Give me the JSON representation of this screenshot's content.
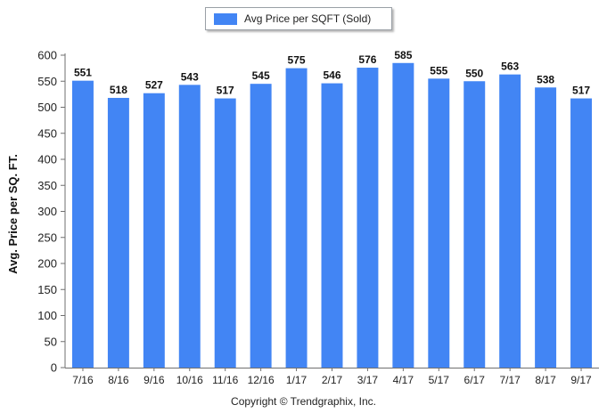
{
  "legend": {
    "label": "Avg Price per SQFT (Sold)",
    "color": "#4285f4"
  },
  "footer": {
    "copyright": "Copyright © Trendgraphix, Inc."
  },
  "chart_data": {
    "type": "bar",
    "categories": [
      "7/16",
      "8/16",
      "9/16",
      "10/16",
      "11/16",
      "12/16",
      "1/17",
      "2/17",
      "3/17",
      "4/17",
      "5/17",
      "6/17",
      "7/17",
      "8/17",
      "9/17"
    ],
    "series": [
      {
        "name": "Avg Price per SQFT (Sold)",
        "values": [
          551,
          518,
          527,
          543,
          517,
          545,
          575,
          546,
          576,
          585,
          555,
          550,
          563,
          538,
          517
        ]
      }
    ],
    "ylabel": "Avg. Price per SQ. FT.",
    "xlabel": "",
    "ylim": [
      0,
      600
    ],
    "yticks": [
      0,
      50,
      100,
      150,
      200,
      250,
      300,
      350,
      400,
      450,
      500,
      550,
      600
    ],
    "grid": false,
    "legend_position": "top",
    "data_labels": true,
    "bar_color": "#4285f4"
  }
}
